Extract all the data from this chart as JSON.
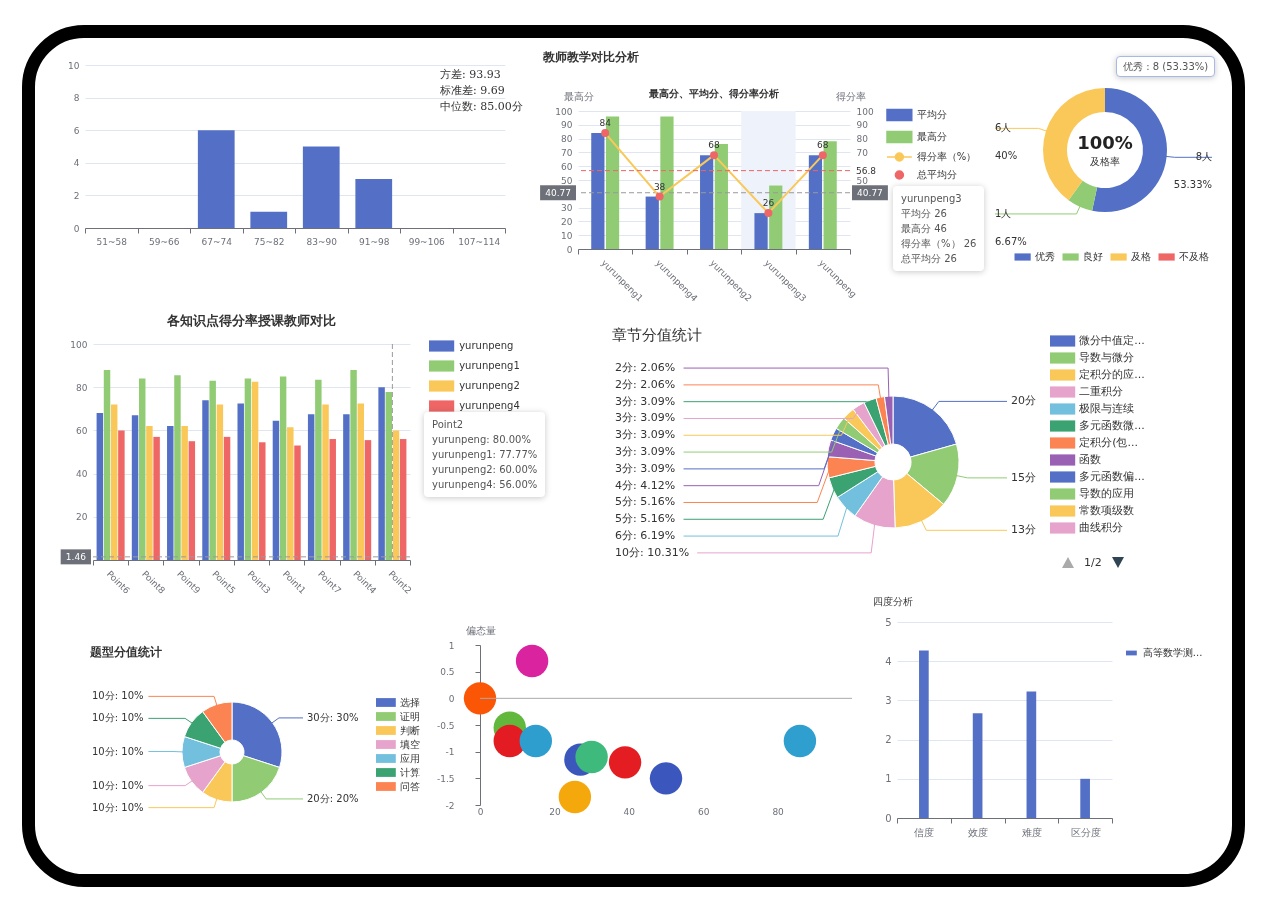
{
  "chart_data": [
    {
      "type": "bar",
      "categories": [
        "51~58",
        "59~66",
        "67~74",
        "75~82",
        "83~90",
        "91~98",
        "99~106",
        "107~114"
      ],
      "values": [
        0,
        0,
        6,
        1,
        5,
        3,
        0,
        0
      ],
      "color": "#5470c6",
      "ylim": [
        0,
        10
      ],
      "yticks": [
        0,
        2,
        4,
        6,
        8,
        10
      ],
      "grid": "y",
      "annotations": [
        "方差: 93.93",
        "标准差: 9.69",
        "中位数: 85.00分"
      ]
    },
    {
      "type": "bar",
      "title": "教师教学对比分析",
      "subtitle": "最高分、平均分、得分率分析",
      "ylabel": "最高分",
      "y2label": "得分率",
      "categories": [
        "yurunpeng1",
        "yurunpeng4",
        "yurunpeng2",
        "yurunpeng3",
        "yurunpeng"
      ],
      "series": [
        {
          "name": "平均分",
          "type": "bar",
          "color": "#5470c6",
          "values": [
            84,
            38,
            68,
            26,
            68
          ]
        },
        {
          "name": "最高分",
          "type": "bar",
          "color": "#91cc75",
          "values": [
            96,
            96,
            76,
            46,
            78
          ]
        },
        {
          "name": "得分率（%）",
          "type": "line",
          "axis": "y2",
          "color": "#fac858",
          "values": [
            84,
            38,
            68,
            26,
            68
          ],
          "value_labels": [
            "84",
            "38",
            "68",
            "26",
            "68"
          ]
        },
        {
          "name": "总平均分",
          "type": "scatter",
          "axis": "y2",
          "color": "#ee6666",
          "marker": "circle",
          "values": [
            84,
            38,
            68,
            26,
            68
          ]
        }
      ],
      "ylim": [
        0,
        100
      ],
      "yticks": [
        0,
        10,
        20,
        30,
        50,
        60,
        70,
        80,
        90,
        100
      ],
      "y2lim": [
        0,
        100
      ],
      "y2ticks": [
        50,
        70,
        80,
        90,
        100
      ],
      "grid": "y",
      "legend": "top right",
      "ref_lines": [
        {
          "axis": "y2",
          "value": 56.8,
          "label": "56.8",
          "color": "#ee6666",
          "line_style": "dashed"
        },
        {
          "axis": "y",
          "value": 40.77,
          "label": "40.77",
          "line_style": "dashed"
        }
      ],
      "bands": [
        {
          "axis": "x",
          "from": "yurunpeng3",
          "to": "yurunpeng3",
          "color": "#eef2fb"
        }
      ],
      "annotations": [
        "yurunpeng3",
        "平均分  26",
        "最高分  46",
        "得分率（%）  26",
        "总平均分  26"
      ]
    },
    {
      "type": "donut",
      "categories": [
        "优秀",
        "良好",
        "及格",
        "不及格"
      ],
      "values": [
        53.33,
        6.67,
        40,
        0
      ],
      "colors": [
        "#5470c6",
        "#91cc75",
        "#fac858",
        "#ee6666"
      ],
      "value_labels": [
        "8人\n53.33%",
        "1人\n6.67%",
        "6人\n40%",
        null
      ],
      "legend": "bottom",
      "annotations": [
        "100%",
        "及格率",
        "优秀 : 8 (53.33%)"
      ]
    },
    {
      "type": "bar",
      "title": "各知识点得分率授课教师对比",
      "categories": [
        "Point6",
        "Point8",
        "Point9",
        "Point5",
        "Point3",
        "Point1",
        "Point7",
        "Point4",
        "Point2"
      ],
      "series": [
        {
          "name": "yurunpeng",
          "color": "#5470c6",
          "values": [
            68,
            67,
            62,
            74,
            72.5,
            64.5,
            67.5,
            67.5,
            80
          ]
        },
        {
          "name": "yurunpeng1",
          "color": "#91cc75",
          "values": [
            88,
            84,
            85.5,
            83,
            84,
            85,
            83.5,
            88,
            77.77
          ]
        },
        {
          "name": "yurunpeng2",
          "color": "#fac858",
          "values": [
            72,
            62,
            62,
            72,
            82.5,
            61.5,
            72,
            72.5,
            60
          ]
        },
        {
          "name": "yurunpeng4",
          "color": "#ee6666",
          "values": [
            60,
            57,
            55,
            57,
            54.5,
            53,
            56,
            55.5,
            56
          ]
        }
      ],
      "ylim": [
        0,
        100
      ],
      "yticks": [
        20,
        40,
        60,
        80,
        100
      ],
      "grid": "y",
      "legend": "top right",
      "ref_lines": [
        {
          "axis": "y",
          "value": 1.46,
          "label": "1.46",
          "line_style": "dashed"
        },
        {
          "axis": "x",
          "value": "Point2",
          "line_style": "dashed"
        }
      ],
      "annotations": [
        "Point2",
        "yurunpeng:  80.00%",
        "yurunpeng1:  77.77%",
        "yurunpeng2:  60.00%",
        "yurunpeng4:  56.00%"
      ]
    },
    {
      "type": "donut",
      "title": "章节分值统计",
      "categories": [
        "微分中值定...",
        "导数与微分",
        "定积分的应...",
        "二重积分",
        "极限与连续",
        "多元函数微...",
        "定积分(包...",
        "函数",
        "多元函数偏...",
        "导数的应用",
        "常数项级数",
        "曲线积分",
        null,
        null,
        null
      ],
      "values": [
        20,
        15,
        13,
        10,
        6,
        5,
        5,
        4,
        3,
        3,
        3,
        3,
        3,
        2,
        2
      ],
      "colors": [
        "#5470c6",
        "#91cc75",
        "#fac858",
        "#e6a3cc",
        "#73c0de",
        "#3ba272",
        "#fc8452",
        "#9a60b4",
        "#5470c6",
        "#91cc75",
        "#fac858",
        "#e6a3cc",
        "#3ba272",
        "#fc8452",
        "#9a60b4"
      ],
      "value_labels": [
        "20分",
        "15分",
        "13分",
        "10分: 10.31%",
        "6分: 6.19%",
        "5分: 5.16%",
        "5分: 5.16%",
        "4分: 4.12%",
        "3分: 3.09%",
        "3分: 3.09%",
        "3分: 3.09%",
        "3分: 3.09%",
        "3分: 3.09%",
        "2分: 2.06%",
        "2分: 2.06%"
      ],
      "legend": "right",
      "annotations": [
        "1/2"
      ]
    },
    {
      "type": "donut",
      "title": "题型分值统计",
      "categories": [
        "选择",
        "证明",
        "判断",
        "填空",
        "应用",
        "计算",
        "问答"
      ],
      "values": [
        30,
        20,
        10,
        10,
        10,
        10,
        10
      ],
      "colors": [
        "#5470c6",
        "#91cc75",
        "#fac858",
        "#e6a3cc",
        "#73c0de",
        "#3ba272",
        "#fc8452"
      ],
      "value_labels": [
        "30分: 30%",
        "20分: 20%",
        "10分: 10%",
        "10分: 10%",
        "10分: 10%",
        "10分: 10%",
        "10分: 10%"
      ],
      "legend": "right"
    },
    {
      "type": "scatter",
      "ylabel": "偏态量",
      "x": [
        14,
        0,
        8,
        8,
        15,
        27,
        30,
        39,
        25.5,
        50,
        86
      ],
      "values": [
        0.7,
        0,
        -0.55,
        -0.8,
        -0.8,
        -1.15,
        -1.1,
        -1.2,
        -1.85,
        -1.5,
        -0.8
      ],
      "colors": [
        "#d9239f",
        "#fb5606",
        "#61b83c",
        "#e31b23",
        "#2e9ecf",
        "#3b57bc",
        "#3dba7c",
        "#e31d21",
        "#f5a80b",
        "#3b56bd",
        "#2f9fd0"
      ],
      "marker": "circle",
      "xlim": [
        0,
        100
      ],
      "xticks": [
        0,
        20,
        40,
        60,
        80
      ],
      "ylim": [
        -2,
        1
      ],
      "yticks": [
        -2,
        -1.5,
        -1,
        -0.5,
        0,
        0.5,
        1
      ],
      "ref_lines": [
        {
          "axis": "y",
          "value": 0,
          "color": "#aaaaaa"
        }
      ]
    },
    {
      "type": "bar",
      "title": "四度分析",
      "categories": [
        "信度",
        "效度",
        "难度",
        "区分度"
      ],
      "series": [
        {
          "name": "高等数学测...",
          "color": "#5470c6",
          "values": [
            4.27,
            2.67,
            3.23,
            1
          ]
        }
      ],
      "ylim": [
        0,
        5
      ],
      "yticks": [
        0,
        1,
        2,
        3,
        4,
        5
      ],
      "grid": "y",
      "legend": "top right"
    }
  ]
}
